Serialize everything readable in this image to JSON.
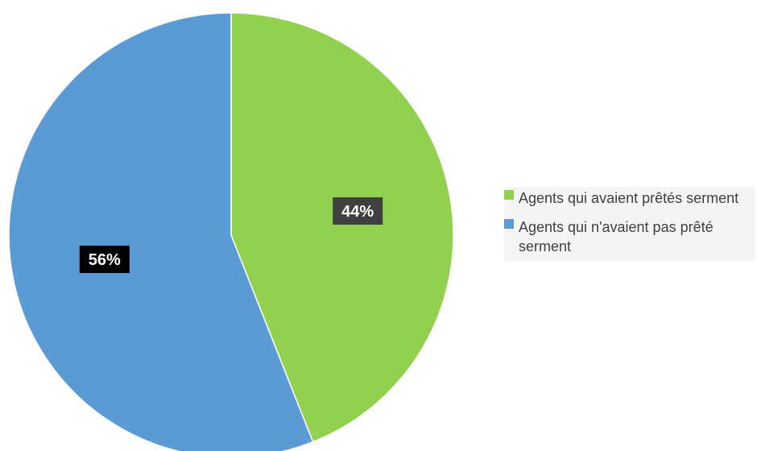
{
  "chart_data": {
    "type": "pie",
    "title": "",
    "categories": [
      "Agents qui avaient prêtés serment",
      "Agents qui n'avaient pas prêté serment"
    ],
    "values": [
      44,
      56
    ],
    "data_labels": [
      "44%",
      "56%"
    ],
    "colors": [
      "#92d050",
      "#5b9bd5"
    ],
    "label_box_colors": [
      "#404040",
      "#000000"
    ],
    "start_angle_deg": 0,
    "direction": "clockwise",
    "legend_position": "right"
  }
}
